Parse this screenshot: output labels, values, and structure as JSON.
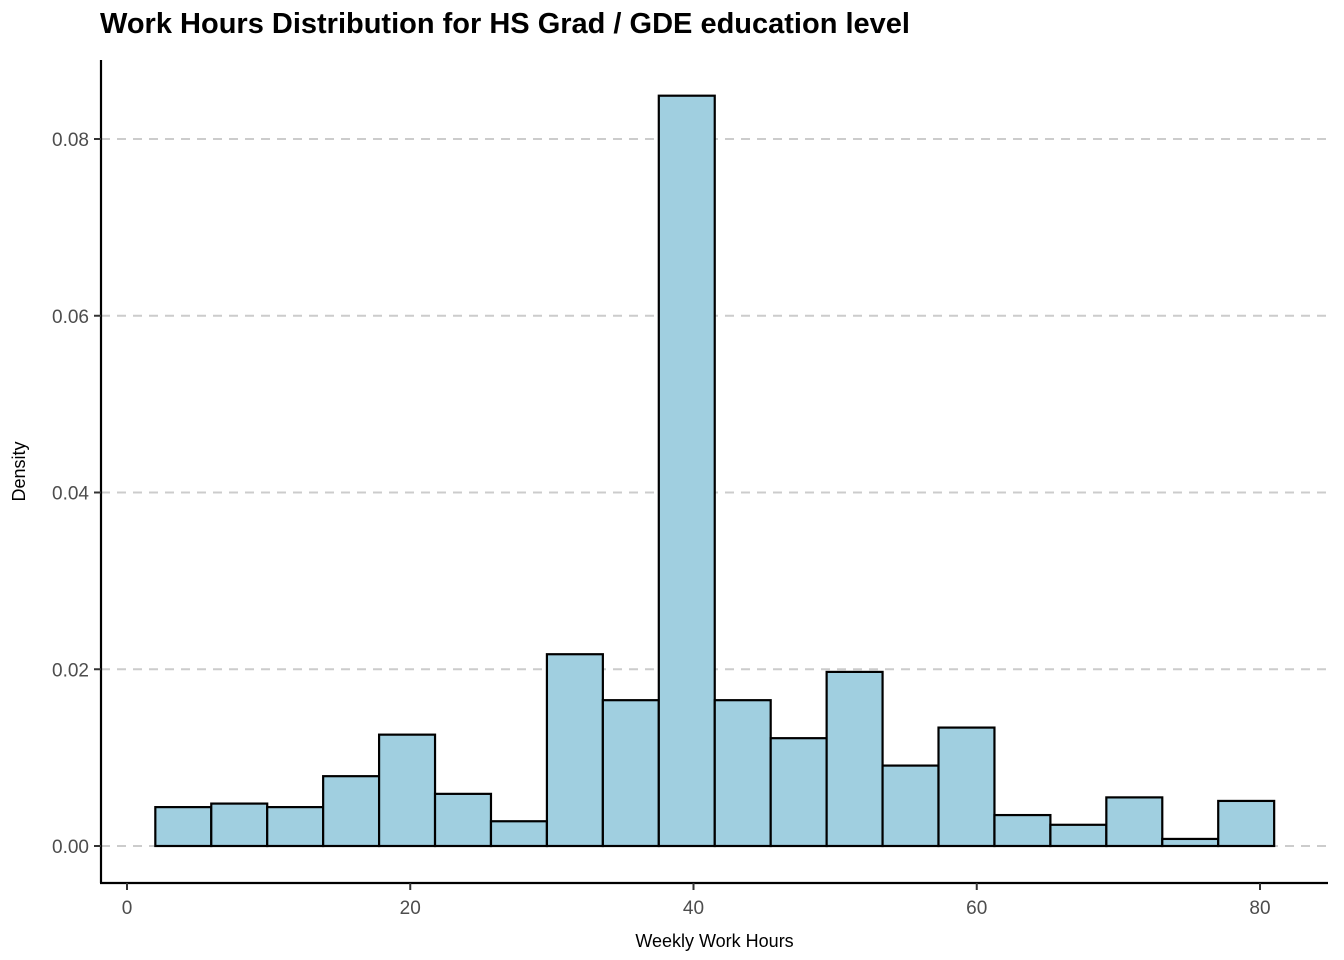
{
  "chart_data": {
    "type": "bar",
    "title": "Work Hours Distribution for HS Grad / GDE education level",
    "xlabel": "Weekly Work Hours",
    "ylabel": "Density",
    "xlim": [
      0,
      85
    ],
    "ylim": [
      0,
      0.088
    ],
    "x_ticks": [
      0,
      20,
      40,
      60,
      80
    ],
    "x_tick_labels": [
      "0",
      "20",
      "40",
      "60",
      "80"
    ],
    "y_ticks": [
      0,
      0.02,
      0.04,
      0.06,
      0.08
    ],
    "y_tick_labels": [
      "0.00",
      "0.02",
      "0.04",
      "0.06",
      "0.08"
    ],
    "grid": "horizontal dashed major gridlines",
    "bin_width": 3.95,
    "bins": [
      {
        "x_start": 2.0,
        "x_end": 5.95,
        "density": 0.0044
      },
      {
        "x_start": 5.95,
        "x_end": 9.9,
        "density": 0.0048
      },
      {
        "x_start": 9.9,
        "x_end": 13.85,
        "density": 0.0044
      },
      {
        "x_start": 13.85,
        "x_end": 17.8,
        "density": 0.0079
      },
      {
        "x_start": 17.8,
        "x_end": 21.75,
        "density": 0.0126
      },
      {
        "x_start": 21.75,
        "x_end": 25.7,
        "density": 0.0059
      },
      {
        "x_start": 25.7,
        "x_end": 29.65,
        "density": 0.0028
      },
      {
        "x_start": 29.65,
        "x_end": 33.6,
        "density": 0.0217
      },
      {
        "x_start": 33.6,
        "x_end": 37.55,
        "density": 0.0165
      },
      {
        "x_start": 37.55,
        "x_end": 41.5,
        "density": 0.0849
      },
      {
        "x_start": 41.5,
        "x_end": 45.45,
        "density": 0.0165
      },
      {
        "x_start": 45.45,
        "x_end": 49.4,
        "density": 0.0122
      },
      {
        "x_start": 49.4,
        "x_end": 53.35,
        "density": 0.0197
      },
      {
        "x_start": 53.35,
        "x_end": 57.3,
        "density": 0.0091
      },
      {
        "x_start": 57.3,
        "x_end": 61.25,
        "density": 0.0134
      },
      {
        "x_start": 61.25,
        "x_end": 65.2,
        "density": 0.0035
      },
      {
        "x_start": 65.2,
        "x_end": 69.15,
        "density": 0.0024
      },
      {
        "x_start": 69.15,
        "x_end": 73.1,
        "density": 0.0055
      },
      {
        "x_start": 73.1,
        "x_end": 77.05,
        "density": 0.0008
      },
      {
        "x_start": 77.05,
        "x_end": 81.0,
        "density": 0.0051
      }
    ],
    "colors": {
      "bar_fill": "#a0cfe0",
      "bar_stroke": "#000000",
      "grid": "#cccccc",
      "axis": "#000000"
    }
  }
}
